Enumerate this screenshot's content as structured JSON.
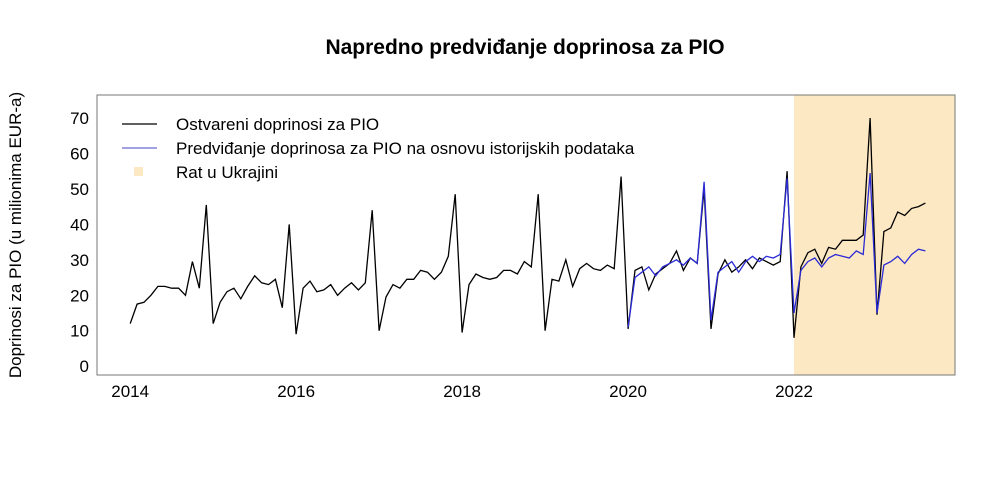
{
  "chart_data": {
    "type": "line",
    "title": "Napredno predviđanje doprinosa za PIO",
    "xlabel": "",
    "ylabel": "Doprinosi za PIO (u milionima EUR-a)",
    "xlim": [
      2013.6,
      2023.94
    ],
    "ylim": [
      -2.5,
      76.5
    ],
    "x_ticks": [
      "2014",
      "2016",
      "2018",
      "2020",
      "2022"
    ],
    "y_ticks": [
      "0",
      "10",
      "20",
      "30",
      "40",
      "50",
      "60",
      "70"
    ],
    "grid": false,
    "legend_position": "top-left",
    "shaded_region": {
      "label": "Rat u Ukrajini",
      "x_start": 2022.0,
      "x_end": 2023.94,
      "color": "#fde8c4"
    },
    "series": [
      {
        "name": "Ostvareni doprinosi za PIO",
        "color": "#000000",
        "start": 2014.0,
        "step_months": 1,
        "values": [
          12,
          17.5,
          18,
          20,
          22.5,
          22.5,
          22,
          22,
          20,
          29.5,
          22,
          45.5,
          12,
          18,
          21,
          22,
          19,
          22.5,
          25.5,
          23.5,
          23,
          24.5,
          16.5,
          40,
          9,
          22,
          24,
          21,
          21.5,
          23,
          20,
          22,
          23.5,
          21.5,
          23.5,
          44,
          10,
          19.5,
          23,
          22,
          24.5,
          24.5,
          27,
          26.5,
          24.5,
          26.5,
          31,
          48.5,
          9.5,
          23,
          26,
          25,
          24.5,
          25,
          27,
          27,
          26,
          29.5,
          28,
          48.5,
          10,
          24.5,
          24,
          30,
          22.5,
          27.5,
          29,
          27.5,
          27,
          28.5,
          27.5,
          53.5,
          10.5,
          27,
          28,
          21.5,
          26,
          27.5,
          29,
          32.5,
          27,
          30.5,
          29,
          50,
          10.5,
          26,
          30,
          26.5,
          28,
          30,
          27.5,
          30.5,
          29.5,
          28.5,
          29.5,
          55,
          8,
          28,
          32,
          33,
          29,
          33.5,
          33,
          35.5,
          35.5,
          35.5,
          37,
          70,
          14.5,
          38,
          39,
          43.5,
          42.5,
          44.5,
          45,
          46
        ]
      },
      {
        "name": "Predviđanje doprinosa za PIO na osnovu istorijskih podataka",
        "color": "#2b2bd6",
        "start": 2020.0,
        "step_months": 1,
        "values": [
          11,
          25,
          26.5,
          28,
          25.5,
          28,
          29,
          30,
          28.5,
          30.5,
          29,
          52,
          13,
          26.5,
          28,
          29.5,
          26.5,
          29.5,
          31,
          29.5,
          31,
          30.5,
          31.5,
          53,
          15,
          27,
          29.5,
          30.5,
          28,
          30.5,
          31.5,
          31,
          30.5,
          32.5,
          31.5,
          54.5,
          15,
          28.5,
          29.5,
          31,
          29,
          31.5,
          33,
          32.5
        ]
      }
    ]
  }
}
